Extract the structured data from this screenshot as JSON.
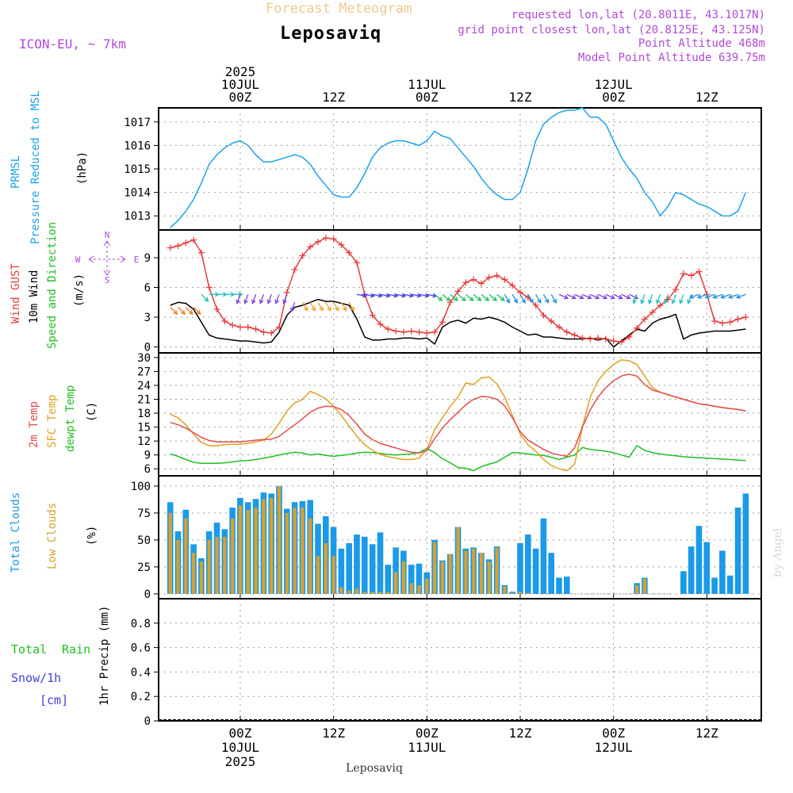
{
  "header": {
    "banner": "Forecast Meteogram",
    "location": "Leposaviq",
    "model": "ICON-EU, ~ 7km",
    "requested": "requested lon,lat (20.8011E, 43.1017N)",
    "grid_point": "grid point closest lon,lat (20.8125E, 43.125N)",
    "point_altitude": "Point Altitude 468m",
    "model_altitude": "Model Point Altitude 639.75m",
    "footer_location": "Leposaviq",
    "watermark": "by Angel"
  },
  "time_axis": {
    "top_labels": [
      {
        "hour": 21,
        "lines": [
          "2025",
          "10JUL",
          "00Z"
        ]
      },
      {
        "hour": 33,
        "lines": [
          "12Z"
        ]
      },
      {
        "hour": 45,
        "lines": [
          "11JUL",
          "00Z"
        ]
      },
      {
        "hour": 57,
        "lines": [
          "12Z"
        ]
      },
      {
        "hour": 69,
        "lines": [
          "12JUL",
          "00Z"
        ]
      },
      {
        "hour": 81,
        "lines": [
          "12Z"
        ]
      }
    ],
    "bottom_labels": [
      {
        "hour": 21,
        "lines": [
          "00Z",
          "10JUL",
          "2025"
        ]
      },
      {
        "hour": 33,
        "lines": [
          "12Z"
        ]
      },
      {
        "hour": 45,
        "lines": [
          "00Z",
          "11JUL"
        ]
      },
      {
        "hour": 57,
        "lines": [
          "12Z"
        ]
      },
      {
        "hour": 69,
        "lines": [
          "00Z",
          "12JUL"
        ]
      },
      {
        "hour": 81,
        "lines": [
          "12Z"
        ]
      }
    ]
  },
  "panels": {
    "pressure": {
      "labels": [
        "PRMSL",
        "Pressure Reduced to MSL"
      ],
      "unit": "(hPa)",
      "ticks": [
        "1013",
        "1014",
        "1015",
        "1016",
        "1017"
      ]
    },
    "wind": {
      "labels": [
        "Wind GUST",
        "10m Wind",
        "Speed and Direction"
      ],
      "unit": "(m/s)",
      "ticks": [
        "0",
        "3",
        "6",
        "9"
      ],
      "compass": {
        "n": "N",
        "s": "S",
        "e": "E",
        "w": "W"
      }
    },
    "temperature": {
      "labels": [
        "2m Temp",
        "SFC Temp",
        "dewpt Temp"
      ],
      "unit": "(C)",
      "ticks": [
        "6",
        "9",
        "12",
        "15",
        "18",
        "21",
        "24",
        "27",
        "30"
      ]
    },
    "clouds": {
      "labels": [
        "Total Clouds",
        "Low Clouds"
      ],
      "unit": "(%)",
      "ticks": [
        "0",
        "25",
        "50",
        "75",
        "100"
      ]
    },
    "precip": {
      "labels": [
        "Total",
        "Rain",
        "Snow/1h",
        "[cm]"
      ],
      "unit": "1hr Precip (mm)",
      "ticks": [
        "0",
        "0.2",
        "0.4",
        "0.6",
        "0.8"
      ]
    }
  },
  "colors": {
    "pressure": "#1aa3e8",
    "gust": "#e83a3a",
    "wind": "#000000",
    "temp2m": "#e84a4a",
    "sfc_temp": "#e0a020",
    "dewpoint": "#1ec01e",
    "total_clouds": "#1a9ae8",
    "low_clouds": "#d9a030",
    "model": "#b04ad8",
    "banner": "#f0c890",
    "total_rain_label": "#1ec01e",
    "snow_label": "#4040e0"
  },
  "chart_data": [
    {
      "type": "line",
      "panel": "pressure",
      "ylabel": "(hPa)",
      "ylim": [
        1012.4,
        1017.6
      ],
      "x_hours": [
        12,
        13,
        14,
        15,
        16,
        17,
        18,
        19,
        20,
        21,
        22,
        23,
        24,
        25,
        26,
        27,
        28,
        29,
        30,
        31,
        32,
        33,
        34,
        35,
        36,
        37,
        38,
        39,
        40,
        41,
        42,
        43,
        44,
        45,
        46,
        47,
        48,
        49,
        50,
        51,
        52,
        53,
        54,
        55,
        56,
        57,
        58,
        59,
        60,
        61,
        62,
        63,
        64,
        65,
        66,
        67,
        68,
        69,
        70,
        71,
        72,
        73,
        74,
        75,
        76,
        77,
        78,
        79,
        80,
        81,
        82,
        83,
        84,
        85,
        86
      ],
      "series": [
        {
          "name": "PRMSL",
          "values": [
            1012.5,
            1012.8,
            1013.2,
            1013.7,
            1014.4,
            1015.2,
            1015.6,
            1015.9,
            1016.1,
            1016.2,
            1016.0,
            1015.6,
            1015.3,
            1015.3,
            1015.4,
            1015.5,
            1015.6,
            1015.5,
            1015.2,
            1014.7,
            1014.3,
            1013.9,
            1013.8,
            1013.8,
            1014.2,
            1014.8,
            1015.5,
            1015.9,
            1016.1,
            1016.2,
            1016.2,
            1016.1,
            1016.0,
            1016.2,
            1016.6,
            1016.4,
            1016.3,
            1015.9,
            1015.5,
            1015.1,
            1014.6,
            1014.2,
            1013.9,
            1013.7,
            1013.7,
            1014.0,
            1015.0,
            1016.2,
            1016.9,
            1017.2,
            1017.4,
            1017.5,
            1017.5,
            1017.6,
            1017.2,
            1017.2,
            1016.9,
            1016.2,
            1015.5,
            1015.0,
            1014.6,
            1014.0,
            1013.6,
            1013.0,
            1013.4,
            1014.0,
            1013.9,
            1013.7,
            1013.5,
            1013.4,
            1013.2,
            1013.0,
            1013.0,
            1013.2,
            1014.0
          ]
        }
      ]
    },
    {
      "type": "line",
      "panel": "wind",
      "ylabel": "(m/s)",
      "ylim": [
        -0.6,
        11.8
      ],
      "x_hours": [
        12,
        13,
        14,
        15,
        16,
        17,
        18,
        19,
        20,
        21,
        22,
        23,
        24,
        25,
        26,
        27,
        28,
        29,
        30,
        31,
        32,
        33,
        34,
        35,
        36,
        37,
        38,
        39,
        40,
        41,
        42,
        43,
        44,
        45,
        46,
        47,
        48,
        49,
        50,
        51,
        52,
        53,
        54,
        55,
        56,
        57,
        58,
        59,
        60,
        61,
        62,
        63,
        64,
        65,
        66,
        67,
        68,
        69,
        70,
        71,
        72,
        73,
        74,
        75,
        76,
        77,
        78,
        79,
        80,
        81,
        82,
        83,
        84,
        85,
        86
      ],
      "series": [
        {
          "name": "Wind GUST",
          "values": [
            10.0,
            10.2,
            10.5,
            10.8,
            9.5,
            6.0,
            3.8,
            2.6,
            2.2,
            2.0,
            2.0,
            1.8,
            1.5,
            1.4,
            2.0,
            5.5,
            7.8,
            9.2,
            10.1,
            10.6,
            11.0,
            10.9,
            10.3,
            9.5,
            8.5,
            5.3,
            3.2,
            2.3,
            1.8,
            1.6,
            1.5,
            1.6,
            1.5,
            1.4,
            1.5,
            2.5,
            4.5,
            5.6,
            6.5,
            6.8,
            6.4,
            7.0,
            7.2,
            6.8,
            6.2,
            5.5,
            5.0,
            4.2,
            3.2,
            2.6,
            2.0,
            1.5,
            1.2,
            0.9,
            0.8,
            0.9,
            0.8,
            0.6,
            0.5,
            1.0,
            1.9,
            2.8,
            3.5,
            4.2,
            4.8,
            5.8,
            7.4,
            7.2,
            7.6,
            5.3,
            2.6,
            2.4,
            2.5,
            2.8,
            3.0
          ]
        },
        {
          "name": "10m Wind",
          "values": [
            4.2,
            4.5,
            4.4,
            3.8,
            2.5,
            1.2,
            0.9,
            0.8,
            0.7,
            0.6,
            0.6,
            0.5,
            0.4,
            0.5,
            1.5,
            3.2,
            4.0,
            4.2,
            4.5,
            4.8,
            4.6,
            4.6,
            4.4,
            4.2,
            2.8,
            1.0,
            0.7,
            0.7,
            0.8,
            0.8,
            0.9,
            0.9,
            0.8,
            0.9,
            0.3,
            2.0,
            2.5,
            2.7,
            2.4,
            2.9,
            2.8,
            3.0,
            2.8,
            2.5,
            2.0,
            1.6,
            1.2,
            1.3,
            1.0,
            1.0,
            0.9,
            0.8,
            0.8,
            0.8,
            0.9,
            0.7,
            0.9,
            0.0,
            0.6,
            1.2,
            1.8,
            1.6,
            2.4,
            2.8,
            3.0,
            3.3,
            0.8,
            1.2,
            1.4,
            1.5,
            1.6,
            1.6,
            1.6,
            1.7,
            1.8
          ]
        }
      ]
    },
    {
      "type": "line",
      "panel": "temperature",
      "ylabel": "(C)",
      "ylim": [
        4.5,
        31
      ],
      "x_hours": [
        12,
        13,
        14,
        15,
        16,
        17,
        18,
        19,
        20,
        21,
        22,
        23,
        24,
        25,
        26,
        27,
        28,
        29,
        30,
        31,
        32,
        33,
        34,
        35,
        36,
        37,
        38,
        39,
        40,
        41,
        42,
        43,
        44,
        45,
        46,
        47,
        48,
        49,
        50,
        51,
        52,
        53,
        54,
        55,
        56,
        57,
        58,
        59,
        60,
        61,
        62,
        63,
        64,
        65,
        66,
        67,
        68,
        69,
        70,
        71,
        72,
        73,
        74,
        75,
        76,
        77,
        78,
        79,
        80,
        81,
        82,
        83,
        84,
        85,
        86
      ],
      "series": [
        {
          "name": "2m Temp",
          "values": [
            16.0,
            15.5,
            14.8,
            13.8,
            12.8,
            12.1,
            11.8,
            11.8,
            11.8,
            11.8,
            12.0,
            12.2,
            12.3,
            12.4,
            13.0,
            14.3,
            15.5,
            16.8,
            18.2,
            19.1,
            19.5,
            19.4,
            18.8,
            17.5,
            15.6,
            13.5,
            12.3,
            11.5,
            11.0,
            10.5,
            10.0,
            9.6,
            9.4,
            9.9,
            12.5,
            14.8,
            16.6,
            18.2,
            19.8,
            21.0,
            21.6,
            21.5,
            21.0,
            19.6,
            17.0,
            14.0,
            12.2,
            11.2,
            10.2,
            9.4,
            9.0,
            8.7,
            10.5,
            15.0,
            18.7,
            21.5,
            23.5,
            25.0,
            26.0,
            26.4,
            26.0,
            24.2,
            23.0,
            22.5,
            22.0,
            21.5,
            21.0,
            20.5,
            20.0,
            19.8,
            19.5,
            19.2,
            19.0,
            18.8,
            18.5
          ]
        },
        {
          "name": "SFC Temp",
          "values": [
            17.8,
            17.0,
            15.5,
            13.5,
            11.7,
            11.0,
            11.0,
            11.2,
            11.3,
            11.3,
            11.5,
            11.8,
            12.2,
            13.5,
            15.8,
            18.5,
            20.2,
            21.0,
            22.7,
            22.0,
            21.1,
            19.5,
            17.5,
            15.2,
            13.0,
            11.2,
            10.0,
            9.1,
            8.6,
            8.3,
            8.0,
            8.0,
            8.3,
            10.2,
            14.5,
            17.0,
            19.5,
            21.5,
            24.5,
            24.2,
            25.6,
            25.8,
            24.3,
            21.5,
            17.5,
            13.5,
            11.2,
            9.8,
            8.0,
            6.7,
            6.0,
            5.6,
            7.0,
            15.0,
            21.5,
            25.0,
            27.0,
            28.5,
            29.5,
            29.3,
            28.5,
            26.0,
            23.5,
            22.5,
            22.0,
            21.5,
            21.0,
            20.5,
            20.0,
            19.8,
            19.5,
            19.2,
            19.0,
            18.8,
            18.5
          ]
        },
        {
          "name": "dewpt Temp",
          "values": [
            9.2,
            8.7,
            8.0,
            7.4,
            7.2,
            7.2,
            7.2,
            7.3,
            7.5,
            7.7,
            7.8,
            8.0,
            8.3,
            8.6,
            9.0,
            9.3,
            9.6,
            9.4,
            9.0,
            9.2,
            8.9,
            8.7,
            8.9,
            9.1,
            9.4,
            9.6,
            9.5,
            9.3,
            9.1,
            9.0,
            9.1,
            9.2,
            9.5,
            10.4,
            9.5,
            8.2,
            7.3,
            6.3,
            6.1,
            5.6,
            6.5,
            7.0,
            7.5,
            8.5,
            9.5,
            9.4,
            9.2,
            9.0,
            8.9,
            8.5,
            8.0,
            8.5,
            9.0,
            10.6,
            10.2,
            10.0,
            9.8,
            9.5,
            9.0,
            8.5,
            11.0,
            10.0,
            9.5,
            9.2,
            9.0,
            8.8,
            8.6,
            8.5,
            8.4,
            8.3,
            8.2,
            8.1,
            8.0,
            7.9,
            7.8
          ]
        }
      ]
    },
    {
      "type": "bar",
      "panel": "clouds",
      "ylabel": "(%)",
      "ylim": [
        -4.5,
        109.5
      ],
      "x_hours": [
        12,
        13,
        14,
        15,
        16,
        17,
        18,
        19,
        20,
        21,
        22,
        23,
        24,
        25,
        26,
        27,
        28,
        29,
        30,
        31,
        32,
        33,
        34,
        35,
        36,
        37,
        38,
        39,
        40,
        41,
        42,
        43,
        44,
        45,
        46,
        47,
        48,
        49,
        50,
        51,
        52,
        53,
        54,
        55,
        56,
        57,
        58,
        59,
        60,
        61,
        62,
        63,
        64,
        65,
        66,
        67,
        68,
        69,
        70,
        71,
        72,
        73,
        74,
        75,
        76,
        77,
        78,
        79,
        80,
        81,
        82,
        83,
        84,
        85,
        86
      ],
      "series": [
        {
          "name": "Total Clouds",
          "values": [
            85,
            58,
            78,
            46,
            33,
            58,
            66,
            60,
            80,
            89,
            85,
            88,
            94,
            93,
            100,
            79,
            85,
            86,
            87,
            65,
            72,
            62,
            42,
            47,
            55,
            53,
            46,
            57,
            27,
            43,
            40,
            27,
            28,
            20,
            50,
            31,
            37,
            62,
            42,
            43,
            38,
            32,
            44,
            8,
            2,
            47,
            55,
            42,
            70,
            38,
            15,
            16,
            0,
            0,
            0,
            0,
            0,
            0,
            0,
            0,
            10,
            15,
            0,
            0,
            0,
            0,
            21,
            44,
            63,
            48,
            15,
            40,
            17,
            80,
            93
          ]
        },
        {
          "name": "Low Clouds",
          "values": [
            75,
            50,
            70,
            38,
            30,
            50,
            53,
            53,
            70,
            82,
            78,
            80,
            88,
            89,
            100,
            75,
            80,
            80,
            70,
            35,
            47,
            35,
            6,
            3,
            5,
            2,
            2,
            2,
            2,
            20,
            30,
            10,
            8,
            14,
            48,
            30,
            37,
            62,
            40,
            42,
            38,
            30,
            43,
            7,
            1,
            2,
            1,
            0,
            0,
            0,
            0,
            0,
            0,
            0,
            0,
            0,
            0,
            0,
            0,
            0,
            8,
            14,
            0,
            0,
            0,
            0,
            0,
            0,
            0,
            0,
            0,
            0,
            0,
            0,
            0
          ]
        }
      ]
    },
    {
      "type": "bar",
      "panel": "precip",
      "ylabel": "1hr Precip (mm)",
      "ylim": [
        0,
        1.0
      ],
      "series": [
        {
          "name": "Total",
          "values": []
        },
        {
          "name": "Rain",
          "values": []
        }
      ]
    }
  ]
}
